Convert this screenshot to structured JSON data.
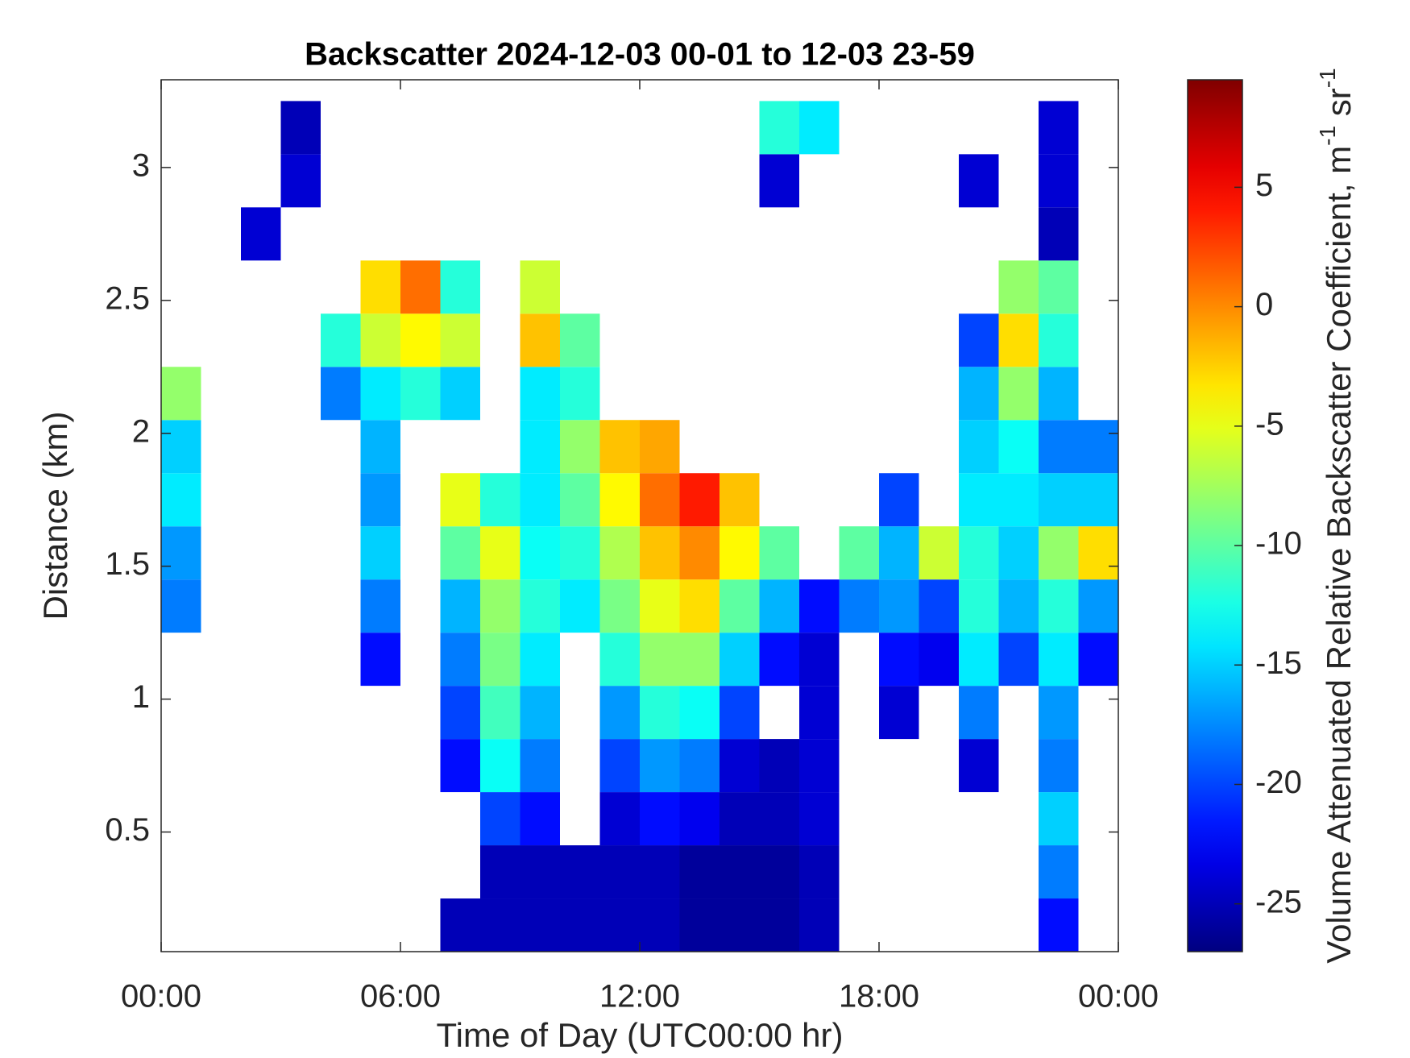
{
  "chart_data": {
    "type": "heatmap",
    "title": "Backscatter 2024-12-03 00-01 to 12-03 23-59",
    "x_label": "Time of Day (UTC00:00 hr)",
    "y_label": "Distance (km)",
    "colorbar_label": {
      "text": "Volume Attenuated Relative Backscatter Coefficient, m",
      "sup1": "-1",
      "mid": " sr",
      "sup2": "-1"
    },
    "colormap": "jet",
    "xlim": [
      0,
      24
    ],
    "ylim": [
      0.05,
      3.33
    ],
    "zlim": [
      -27,
      9.5
    ],
    "xticks": [
      {
        "value": 0,
        "label": "00:00"
      },
      {
        "value": 6,
        "label": "06:00"
      },
      {
        "value": 12,
        "label": "12:00"
      },
      {
        "value": 18,
        "label": "18:00"
      },
      {
        "value": 24,
        "label": "00:00"
      }
    ],
    "yticks": [
      0.5,
      1,
      1.5,
      2,
      2.5,
      3
    ],
    "zticks": [
      -25,
      -20,
      -15,
      -10,
      -5,
      0,
      5
    ],
    "x_edges": [
      0,
      1,
      2,
      3,
      4,
      5,
      6,
      7,
      8,
      9,
      10,
      11,
      12,
      13,
      14,
      15,
      16,
      17,
      18,
      19,
      20,
      21,
      22,
      23,
      24
    ],
    "y_edges": [
      0.05,
      0.25,
      0.45,
      0.65,
      0.85,
      1.05,
      1.25,
      1.45,
      1.65,
      1.85,
      2.05,
      2.25,
      2.45,
      2.65,
      2.85,
      3.05,
      3.25
    ],
    "z": [
      [
        null,
        null,
        null,
        null,
        null,
        null,
        null,
        -25,
        -25,
        -25,
        -25,
        -25,
        -25,
        -26,
        -26,
        -26,
        -25,
        null,
        null,
        null,
        null,
        null,
        -22,
        null
      ],
      [
        null,
        null,
        null,
        null,
        null,
        null,
        null,
        null,
        -25,
        -25,
        -25,
        -25,
        -25,
        -26,
        -26,
        -26,
        -25,
        null,
        null,
        null,
        null,
        null,
        -18,
        null
      ],
      [
        null,
        null,
        null,
        null,
        null,
        null,
        null,
        null,
        -20,
        -22,
        null,
        -24,
        -22,
        -23,
        -25,
        -25,
        -24,
        null,
        null,
        null,
        null,
        null,
        -15,
        null
      ],
      [
        null,
        null,
        null,
        null,
        null,
        null,
        null,
        -22,
        -13,
        -18,
        null,
        -20,
        -17,
        -18,
        -24,
        -25,
        -24,
        null,
        null,
        null,
        -24,
        null,
        -18,
        null
      ],
      [
        null,
        null,
        null,
        null,
        null,
        null,
        null,
        -20,
        -11,
        -16,
        null,
        -17,
        -12,
        -13,
        -20,
        null,
        -24,
        null,
        -24,
        null,
        -18,
        null,
        -17,
        null
      ],
      [
        null,
        null,
        null,
        null,
        null,
        -22,
        null,
        -18,
        -9,
        -14,
        null,
        -12,
        -8,
        -8,
        -15,
        -22,
        -24,
        null,
        -22,
        -23,
        -14,
        -20,
        -14,
        -22
      ],
      [
        -18,
        null,
        null,
        null,
        null,
        -18,
        null,
        -16,
        -8,
        -12,
        -14,
        -9,
        -5,
        -3,
        -10,
        -16,
        -22,
        -18,
        -17,
        -20,
        -12,
        -16,
        -12,
        -17
      ],
      [
        -17,
        null,
        null,
        null,
        null,
        -15,
        null,
        -10,
        -5,
        -13,
        -12,
        -7,
        -2,
        0,
        -4,
        -10,
        null,
        -10,
        -16,
        -6,
        -12,
        -15,
        -8,
        -3
      ],
      [
        -14,
        null,
        null,
        null,
        null,
        -17,
        null,
        -5,
        -12,
        -14,
        -10,
        -4,
        1,
        4,
        -2,
        null,
        null,
        null,
        -20,
        null,
        -14,
        -14,
        -15,
        -15
      ],
      [
        -15,
        null,
        null,
        null,
        null,
        -16,
        null,
        null,
        null,
        -14,
        -8,
        -2,
        -1,
        null,
        null,
        null,
        null,
        null,
        null,
        null,
        -15,
        -13,
        -18,
        -18
      ],
      [
        -8,
        null,
        null,
        null,
        -18,
        -14,
        -12,
        -15,
        null,
        -14,
        -12,
        null,
        null,
        null,
        null,
        null,
        null,
        null,
        null,
        null,
        -16,
        -8,
        -16,
        null
      ],
      [
        null,
        null,
        null,
        null,
        -12,
        -6,
        -4,
        -6,
        null,
        -2,
        -10,
        null,
        null,
        null,
        null,
        null,
        null,
        null,
        null,
        null,
        -20,
        -3,
        -12,
        null
      ],
      [
        null,
        null,
        null,
        null,
        null,
        -3,
        1,
        -12,
        null,
        -6,
        null,
        null,
        null,
        null,
        null,
        null,
        null,
        null,
        null,
        null,
        null,
        -8,
        -10,
        null
      ],
      [
        null,
        null,
        -24,
        null,
        null,
        null,
        null,
        null,
        null,
        null,
        null,
        null,
        null,
        null,
        null,
        null,
        null,
        null,
        null,
        null,
        null,
        null,
        -25,
        null
      ],
      [
        null,
        null,
        null,
        -24,
        null,
        null,
        null,
        null,
        null,
        null,
        null,
        null,
        null,
        null,
        null,
        -24,
        null,
        null,
        null,
        null,
        -24,
        null,
        -24,
        null
      ],
      [
        null,
        null,
        null,
        -25,
        null,
        null,
        null,
        null,
        null,
        null,
        null,
        null,
        null,
        null,
        null,
        -12,
        -14,
        null,
        null,
        null,
        null,
        null,
        -24,
        null
      ]
    ]
  }
}
